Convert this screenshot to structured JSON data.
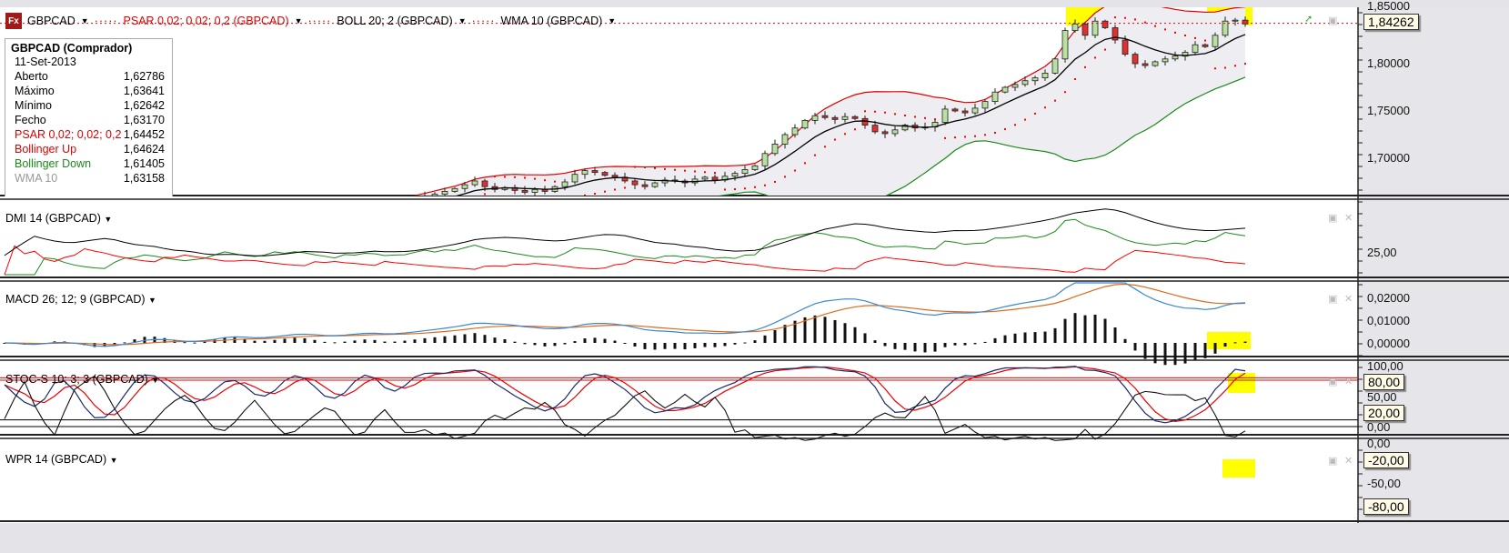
{
  "toolbar": {
    "symbol": "GBPCAD",
    "psar": "PSAR 0,02; 0,02; 0,2 (GBPCAD)",
    "boll": "BOLL 20; 2 (GBPCAD)",
    "wma": "WMA 10 (GBPCAD)",
    "logo": "Fx"
  },
  "legend": {
    "title": "GBPCAD (Comprador)",
    "date": "11-Set-2013",
    "rows": [
      {
        "label": "Aberto",
        "value": "1,62786",
        "color": "#000000"
      },
      {
        "label": "Máximo",
        "value": "1,63641",
        "color": "#000000"
      },
      {
        "label": "Mínimo",
        "value": "1,62642",
        "color": "#000000"
      },
      {
        "label": "Fecho",
        "value": "1,63170",
        "color": "#000000"
      },
      {
        "label": "PSAR 0,02; 0,02; 0,2",
        "value": "1,64452",
        "color": "#e00000"
      },
      {
        "label": "Bollinger Up",
        "value": "1,64624",
        "color": "#e00000"
      },
      {
        "label": "Bollinger Down",
        "value": "1,61405",
        "color": "#1a8a1a"
      },
      {
        "label": "WMA 10",
        "value": "1,63158",
        "color": "#999999"
      }
    ]
  },
  "panels": {
    "dmi": "DMI 14 (GBPCAD)",
    "macd": "MACD 26; 12; 9 (GBPCAD)",
    "stoc": "STOC-S 10; 3; 3 (GBPCAD)",
    "wpr": "WPR 14 (GBPCAD)"
  },
  "axes": {
    "price": [
      "1,85000",
      "1,80000",
      "1,75000",
      "1,70000"
    ],
    "price_current": "1,84262",
    "dmi": [
      "25,00"
    ],
    "macd": [
      "0,02000",
      "0,01000",
      "0,00000"
    ],
    "stoc": [
      "100,00",
      "50,00",
      "0,00"
    ],
    "stoc_levels": [
      "80,00",
      "20,00"
    ],
    "wpr": [
      "0,00",
      "-50,00"
    ],
    "wpr_levels": [
      "-20,00",
      "-80,00"
    ]
  },
  "colors": {
    "up": "#b8e0a0",
    "down": "#e03030",
    "psar": "#ff0000",
    "bb_up": "#e00000",
    "bb_down": "#1a8a1a",
    "wma": "#000000",
    "highlight": "#ffff00",
    "plus_di": "#1a8a1a",
    "minus_di": "#ff0000",
    "adx": "#000000",
    "macd": "#3a88d0",
    "signal": "#e06a1a"
  },
  "chart_data": {
    "type": "candlestick",
    "symbol": "GBPCAD",
    "ylim": [
      1.66,
      1.855
    ],
    "current": 1.84262,
    "closes": [
      1.63,
      1.628,
      1.625,
      1.627,
      1.632,
      1.635,
      1.631,
      1.626,
      1.622,
      1.62,
      1.624,
      1.629,
      1.633,
      1.638,
      1.641,
      1.637,
      1.633,
      1.63,
      1.628,
      1.631,
      1.636,
      1.64,
      1.644,
      1.641,
      1.637,
      1.635,
      1.639,
      1.643,
      1.646,
      1.648,
      1.645,
      1.642,
      1.64,
      1.643,
      1.647,
      1.65,
      1.652,
      1.649,
      1.646,
      1.65,
      1.654,
      1.657,
      1.66,
      1.662,
      1.665,
      1.668,
      1.672,
      1.676,
      1.67,
      1.667,
      1.669,
      1.666,
      1.664,
      1.667,
      1.665,
      1.67,
      1.675,
      1.683,
      1.687,
      1.685,
      1.682,
      1.68,
      1.676,
      1.672,
      1.67,
      1.674,
      1.677,
      1.676,
      1.674,
      1.678,
      1.68,
      1.677,
      1.681,
      1.684,
      1.688,
      1.692,
      1.705,
      1.715,
      1.725,
      1.732,
      1.74,
      1.745,
      1.743,
      1.741,
      1.744,
      1.742,
      1.735,
      1.728,
      1.726,
      1.73,
      1.735,
      1.732,
      1.733,
      1.738,
      1.752,
      1.75,
      1.748,
      1.753,
      1.76,
      1.77,
      1.775,
      1.778,
      1.782,
      1.785,
      1.79,
      1.805,
      1.835,
      1.842,
      1.83,
      1.845,
      1.838,
      1.825,
      1.81,
      1.8,
      1.798,
      1.802,
      1.805,
      1.808,
      1.812,
      1.82,
      1.818,
      1.83,
      1.845,
      1.846,
      1.842
    ]
  }
}
